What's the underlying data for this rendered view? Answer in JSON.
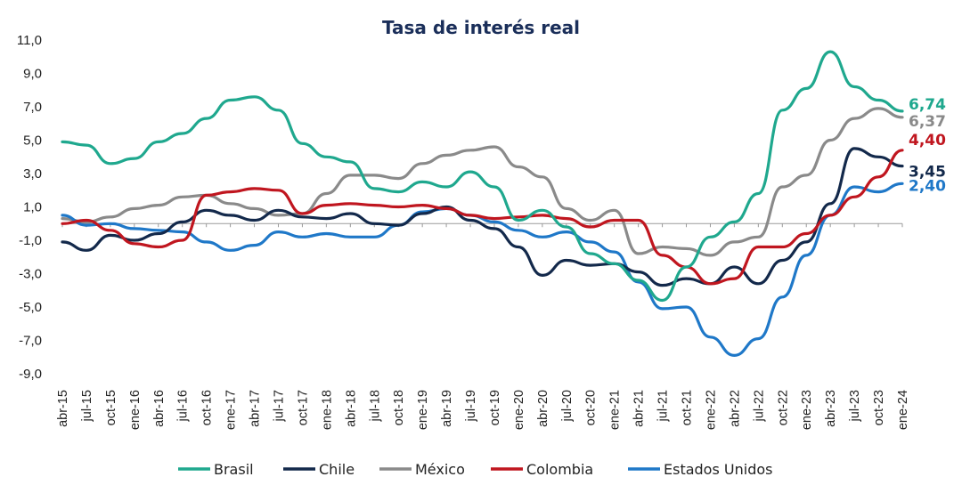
{
  "chart_data": {
    "type": "line",
    "title": "Tasa de interés real",
    "xlabel": "",
    "ylabel": "",
    "ylim": [
      -9.0,
      11.0
    ],
    "yticks": [
      "11,0",
      "9,0",
      "7,0",
      "5,0",
      "3,0",
      "1,0",
      "-1,0",
      "-3,0",
      "-5,0",
      "-7,0",
      "-9,0"
    ],
    "x_tick_labels": [
      "abr-15",
      "jul-15",
      "oct-15",
      "ene-16",
      "abr-16",
      "jul-16",
      "oct-16",
      "ene-17",
      "abr-17",
      "jul-17",
      "oct-17",
      "ene-18",
      "abr-18",
      "jul-18",
      "oct-18",
      "ene-19",
      "abr-19",
      "jul-19",
      "oct-19",
      "ene-20",
      "abr-20",
      "jul-20",
      "oct-20",
      "ene-21",
      "abr-21",
      "jul-21",
      "oct-21",
      "ene-22",
      "abr-22",
      "jul-22",
      "oct-22",
      "ene-23",
      "abr-23",
      "jul-23",
      "oct-23",
      "ene-24"
    ],
    "x_start": "abr-15",
    "x_end": "ene-24",
    "legend_position": "bottom",
    "series": [
      {
        "name": "Brasil",
        "color": "#1fa88e",
        "end_label": "6,74",
        "x": [
          "abr-15",
          "jul-15",
          "oct-15",
          "ene-16",
          "abr-16",
          "jul-16",
          "oct-16",
          "ene-17",
          "abr-17",
          "jul-17",
          "oct-17",
          "ene-18",
          "abr-18",
          "jul-18",
          "oct-18",
          "ene-19",
          "abr-19",
          "jul-19",
          "oct-19",
          "ene-20",
          "abr-20",
          "jul-20",
          "oct-20",
          "ene-21",
          "abr-21",
          "jul-21",
          "oct-21",
          "ene-22",
          "abr-22",
          "jul-22",
          "oct-22",
          "ene-23",
          "abr-23",
          "jul-23",
          "oct-23",
          "ene-24"
        ],
        "values": [
          4.9,
          4.7,
          3.6,
          3.9,
          4.9,
          5.4,
          6.3,
          7.4,
          7.6,
          6.8,
          4.8,
          4.0,
          3.7,
          2.1,
          1.9,
          2.5,
          2.2,
          3.1,
          2.2,
          0.2,
          0.8,
          -0.2,
          -1.8,
          -2.4,
          -3.4,
          -4.6,
          -2.6,
          -0.8,
          0.1,
          1.8,
          6.8,
          8.1,
          10.3,
          8.2,
          7.4,
          6.74
        ]
      },
      {
        "name": "Chile",
        "color": "#13294b",
        "end_label": "3,45",
        "x": [
          "abr-15",
          "jul-15",
          "oct-15",
          "ene-16",
          "abr-16",
          "jul-16",
          "oct-16",
          "ene-17",
          "abr-17",
          "jul-17",
          "oct-17",
          "ene-18",
          "abr-18",
          "jul-18",
          "oct-18",
          "ene-19",
          "abr-19",
          "jul-19",
          "oct-19",
          "ene-20",
          "abr-20",
          "jul-20",
          "oct-20",
          "ene-21",
          "abr-21",
          "jul-21",
          "oct-21",
          "ene-22",
          "abr-22",
          "jul-22",
          "oct-22",
          "ene-23",
          "abr-23",
          "jul-23",
          "oct-23",
          "ene-24"
        ],
        "values": [
          -1.1,
          -1.6,
          -0.7,
          -1.0,
          -0.6,
          0.1,
          0.8,
          0.5,
          0.2,
          0.8,
          0.4,
          0.3,
          0.6,
          0.0,
          -0.1,
          0.6,
          1.0,
          0.2,
          -0.3,
          -1.4,
          -3.1,
          -2.2,
          -2.5,
          -2.4,
          -2.9,
          -3.7,
          -3.3,
          -3.6,
          -2.6,
          -3.6,
          -2.2,
          -1.1,
          1.2,
          4.5,
          4.0,
          3.45
        ]
      },
      {
        "name": "México",
        "color": "#8a8a8a",
        "end_label": "6,37",
        "x": [
          "abr-15",
          "jul-15",
          "oct-15",
          "ene-16",
          "abr-16",
          "jul-16",
          "oct-16",
          "ene-17",
          "abr-17",
          "jul-17",
          "oct-17",
          "ene-18",
          "abr-18",
          "jul-18",
          "oct-18",
          "ene-19",
          "abr-19",
          "jul-19",
          "oct-19",
          "ene-20",
          "abr-20",
          "jul-20",
          "oct-20",
          "ene-21",
          "abr-21",
          "jul-21",
          "oct-21",
          "ene-22",
          "abr-22",
          "jul-22",
          "oct-22",
          "ene-23",
          "abr-23",
          "jul-23",
          "oct-23",
          "ene-24"
        ],
        "values": [
          0.3,
          0.1,
          0.4,
          0.9,
          1.1,
          1.6,
          1.7,
          1.2,
          0.9,
          0.5,
          0.6,
          1.8,
          2.9,
          2.9,
          2.7,
          3.6,
          4.1,
          4.4,
          4.6,
          3.4,
          2.8,
          0.9,
          0.2,
          0.8,
          -1.8,
          -1.4,
          -1.5,
          -1.9,
          -1.1,
          -0.8,
          2.2,
          2.9,
          5.0,
          6.3,
          6.9,
          6.37
        ]
      },
      {
        "name": "Colombia",
        "color": "#c0161f",
        "end_label": "4,40",
        "x": [
          "abr-15",
          "jul-15",
          "oct-15",
          "ene-16",
          "abr-16",
          "jul-16",
          "oct-16",
          "ene-17",
          "abr-17",
          "jul-17",
          "oct-17",
          "ene-18",
          "abr-18",
          "jul-18",
          "oct-18",
          "ene-19",
          "abr-19",
          "jul-19",
          "oct-19",
          "ene-20",
          "abr-20",
          "jul-20",
          "oct-20",
          "ene-21",
          "abr-21",
          "jul-21",
          "oct-21",
          "ene-22",
          "abr-22",
          "jul-22",
          "oct-22",
          "ene-23",
          "abr-23",
          "jul-23",
          "oct-23",
          "ene-24"
        ],
        "values": [
          0.0,
          0.2,
          -0.4,
          -1.2,
          -1.4,
          -1.0,
          1.7,
          1.9,
          2.1,
          2.0,
          0.6,
          1.1,
          1.2,
          1.1,
          1.0,
          1.1,
          0.9,
          0.5,
          0.3,
          0.4,
          0.5,
          0.3,
          -0.2,
          0.2,
          0.2,
          -1.9,
          -2.6,
          -3.6,
          -3.3,
          -1.4,
          -1.4,
          -0.6,
          0.5,
          1.6,
          2.8,
          4.4
        ]
      },
      {
        "name": "Estados Unidos",
        "color": "#1f78c8",
        "end_label": "2,40",
        "x": [
          "abr-15",
          "jul-15",
          "oct-15",
          "ene-16",
          "abr-16",
          "jul-16",
          "oct-16",
          "ene-17",
          "abr-17",
          "jul-17",
          "oct-17",
          "ene-18",
          "abr-18",
          "jul-18",
          "oct-18",
          "ene-19",
          "abr-19",
          "jul-19",
          "oct-19",
          "ene-20",
          "abr-20",
          "jul-20",
          "oct-20",
          "ene-21",
          "abr-21",
          "jul-21",
          "oct-21",
          "ene-22",
          "abr-22",
          "jul-22",
          "oct-22",
          "ene-23",
          "abr-23",
          "jul-23",
          "oct-23",
          "ene-24"
        ],
        "values": [
          0.5,
          -0.1,
          0.0,
          -0.3,
          -0.4,
          -0.5,
          -1.1,
          -1.6,
          -1.3,
          -0.5,
          -0.8,
          -0.6,
          -0.8,
          -0.8,
          -0.1,
          0.7,
          0.9,
          0.5,
          0.1,
          -0.4,
          -0.8,
          -0.5,
          -1.1,
          -1.7,
          -3.5,
          -5.1,
          -5.0,
          -6.8,
          -7.9,
          -6.9,
          -4.4,
          -1.9,
          0.5,
          2.2,
          1.9,
          2.4
        ]
      }
    ]
  }
}
